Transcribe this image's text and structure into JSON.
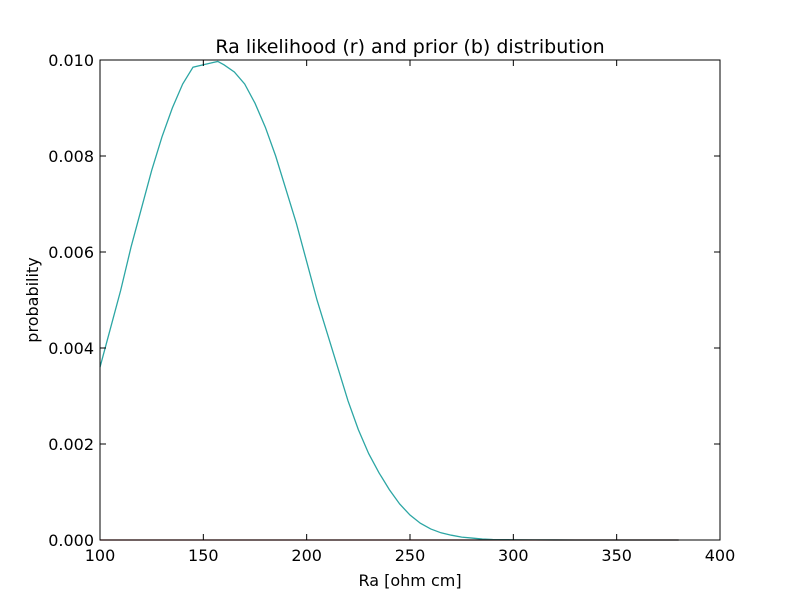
{
  "chart_data": {
    "type": "line",
    "title": "Ra likelihood (r) and prior (b) distribution",
    "xlabel": "Ra [ohm cm]",
    "ylabel": "probability",
    "xlim": [
      100,
      400
    ],
    "ylim": [
      0,
      0.01
    ],
    "xticks": [
      100,
      150,
      200,
      250,
      300,
      350,
      400
    ],
    "xtick_labels": [
      "100",
      "150",
      "200",
      "250",
      "300",
      "350",
      "400"
    ],
    "yticks": [
      0,
      0.002,
      0.004,
      0.006,
      0.008,
      0.01
    ],
    "ytick_labels": [
      "0.000",
      "0.002",
      "0.004",
      "0.006",
      "0.008",
      "0.010"
    ],
    "grid": false,
    "series": [
      {
        "color": "#2ca6a4",
        "x": [
          100,
          105,
          110,
          115,
          120,
          125,
          130,
          135,
          140,
          145,
          150,
          155,
          157,
          160,
          165,
          170,
          175,
          180,
          185,
          190,
          195,
          200,
          205,
          210,
          215,
          220,
          225,
          230,
          235,
          240,
          245,
          250,
          255,
          260,
          265,
          270,
          275,
          280,
          285,
          290,
          300,
          310,
          320,
          330,
          340,
          350,
          360,
          370,
          380
        ],
        "y": [
          0.0036,
          0.0044,
          0.0052,
          0.0061,
          0.0069,
          0.0077,
          0.0084,
          0.009,
          0.0095,
          0.00985,
          0.0099,
          0.00995,
          0.00997,
          0.0099,
          0.00975,
          0.0095,
          0.0091,
          0.0086,
          0.008,
          0.0073,
          0.0066,
          0.0058,
          0.005,
          0.0043,
          0.0036,
          0.0029,
          0.0023,
          0.0018,
          0.0014,
          0.00105,
          0.00075,
          0.00052,
          0.00035,
          0.00023,
          0.00015,
          0.0001,
          6e-05,
          4e-05,
          2e-05,
          1e-05,
          5e-06,
          2e-06,
          1e-06,
          5e-07,
          0,
          0,
          0,
          0,
          0
        ]
      },
      {
        "color": "#8b1a1a",
        "x": [
          100,
          380
        ],
        "y": [
          0,
          0
        ]
      }
    ]
  }
}
